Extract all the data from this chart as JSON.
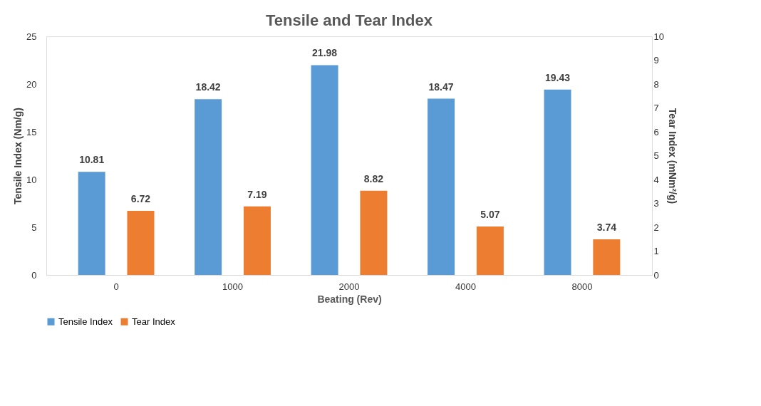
{
  "chart_data": {
    "type": "bar",
    "title": "Tensile and Tear Index",
    "xlabel": "Beating (Rev)",
    "ylabel": "Tensile Index (Nm/g)",
    "y2label": "Tear Index (mNm²/g)",
    "categories": [
      "0",
      "1000",
      "2000",
      "4000",
      "8000"
    ],
    "series": [
      {
        "name": "Tensile Index",
        "color": "#5b9bd5",
        "values": [
          10.81,
          18.42,
          21.98,
          18.47,
          19.43
        ]
      },
      {
        "name": "Tear Index",
        "color": "#ed7d31",
        "values": [
          6.72,
          7.19,
          8.82,
          5.07,
          3.74
        ]
      }
    ],
    "ylim": [
      0,
      25
    ],
    "yticks": [
      0,
      5,
      10,
      15,
      20,
      25
    ],
    "y2lim": [
      0,
      10
    ],
    "y2ticks": [
      0,
      1,
      2,
      3,
      4,
      5,
      6,
      7,
      8,
      9,
      10
    ],
    "data_labels": true,
    "grid": false,
    "legend": "bottom"
  }
}
